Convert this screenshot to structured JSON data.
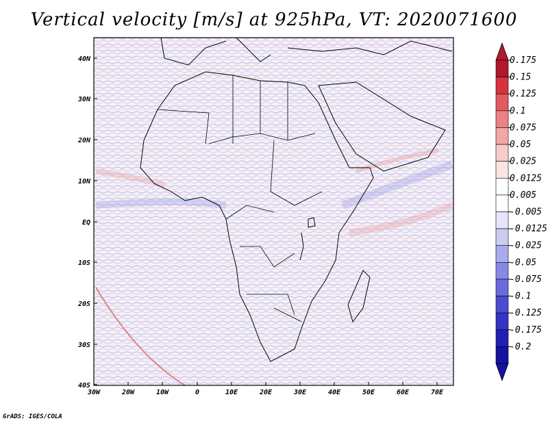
{
  "title": "Vertical velocity [m/s] at 925hPa, VT: 2020071600",
  "footer": "GrADS: IGES/COLA",
  "map": {
    "lat_labels": [
      "40N",
      "30N",
      "20N",
      "10N",
      "EQ",
      "10S",
      "20S",
      "30S",
      "40S"
    ],
    "lon_labels": [
      "30W",
      "20W",
      "10W",
      "0",
      "10E",
      "20E",
      "30E",
      "40E",
      "50E",
      "60E",
      "70E"
    ]
  },
  "colorbar": {
    "colors": [
      "#b2182b",
      "#d6333f",
      "#e35a5f",
      "#ec8183",
      "#f2a6a6",
      "#f8cccc",
      "#fbe4e4",
      "#ffffff",
      "#ffffff",
      "#e6e6fa",
      "#ccccf3",
      "#aaaaee",
      "#8888e6",
      "#6a6adc",
      "#4c4cd2",
      "#3434c4",
      "#2020b4",
      "#1414a0"
    ],
    "labels": [
      "0.175",
      "0.15",
      "0.125",
      "0.1",
      "0.075",
      "0.05",
      "0.025",
      "0.0125",
      "0.005",
      "-0.005",
      "-0.0125",
      "-0.025",
      "-0.05",
      "-0.075",
      "-0.1",
      "-0.125",
      "-0.175",
      "-0.2"
    ],
    "top_color": "#b2182b",
    "bottom_color": "#1414a0"
  }
}
